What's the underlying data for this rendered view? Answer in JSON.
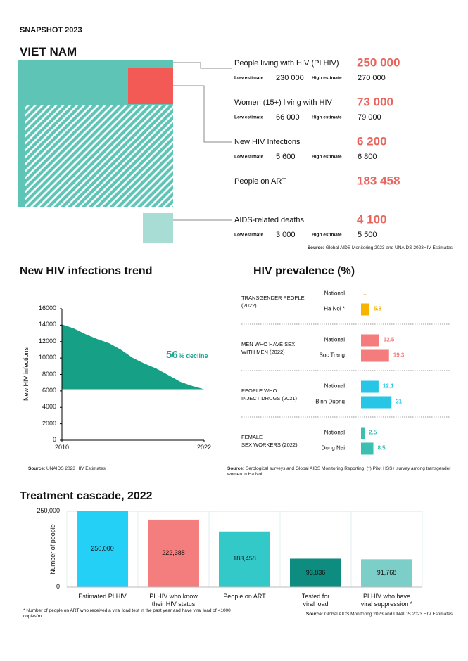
{
  "header": {
    "kicker": "SNAPSHOT 2023",
    "country": "VIET NAM"
  },
  "snapshot": {
    "low_label": "Low estimate",
    "high_label": "High estimate",
    "indicators": [
      {
        "label": "People living with HIV (PLHIV)",
        "value": "250 000",
        "low": "230 000",
        "high": "270 000"
      },
      {
        "label": "Women (15+) living with HIV",
        "value": "73 000",
        "low": "66 000",
        "high": "79 000"
      },
      {
        "label": "New HIV Infections",
        "value": "6 200",
        "low": "5 600",
        "high": "6 800"
      },
      {
        "label": "People on ART",
        "value": "183 458"
      },
      {
        "label": "AIDS-related deaths",
        "value": "4 100",
        "low": "3 000",
        "high": "5 500"
      }
    ],
    "source_label": "Source:",
    "source": "Global AIDS Monitoring 2023 and UNAIDS 2023HIV Estimates"
  },
  "chart_data": [
    {
      "type": "area",
      "title": "New HIV infections trend",
      "y_label": "New HIV infections",
      "x": [
        2010,
        2011,
        2012,
        2013,
        2014,
        2015,
        2016,
        2017,
        2018,
        2019,
        2020,
        2021,
        2022
      ],
      "values": [
        14100,
        13600,
        12900,
        12300,
        11800,
        11000,
        10000,
        9300,
        8700,
        7900,
        7100,
        6600,
        6200
      ],
      "color": "#16a086",
      "xlim": [
        2010,
        2022
      ],
      "xticks": [
        2010,
        2022
      ],
      "ylim": [
        0,
        16000
      ],
      "yticks": [
        0,
        2000,
        4000,
        6000,
        8000,
        10000,
        12000,
        14000,
        16000
      ],
      "annotation_value": "56",
      "annotation_text": "% decline",
      "source_label": "Source:",
      "source": "UNAIDS 2023 HIV Estimates"
    },
    {
      "type": "bar",
      "orientation": "horizontal",
      "title": "HIV prevalence (%)",
      "groups": [
        {
          "label": "TRANSGENDER PEOPLE\n(2022)",
          "color": "#f6b400",
          "categories": [
            "National",
            "Ha Noi  *"
          ],
          "values": [
            null,
            5.8
          ],
          "value_labels": [
            "...",
            "5.8"
          ]
        },
        {
          "label": "MEN WHO HAVE SEX\nWITH MEN (2022)",
          "color": "#f47c7c",
          "categories": [
            "National",
            "Soc Trang"
          ],
          "values": [
            12.5,
            19.3
          ]
        },
        {
          "label": "PEOPLE WHO\nINJECT DRUGS (2021)",
          "color": "#27c6e6",
          "categories": [
            "National",
            "Binh Duong"
          ],
          "values": [
            12.1,
            21
          ]
        },
        {
          "label": "FEMALE\nSEX WORKERS (2022)",
          "color": "#39c0b2",
          "categories": [
            "National",
            "Dong Nai"
          ],
          "values": [
            2.5,
            8.5
          ]
        }
      ],
      "source_label": "Source:",
      "source": "Serological surveys and Global AIDS Monitoring Reporting. (*) Pilot HSS+ survey among transgender women in Ha Noi"
    },
    {
      "type": "bar",
      "title": "Treatment cascade, 2022",
      "y_label": "Number of people",
      "categories": [
        "Estimated PLHIV",
        "PLHIV who know\ntheir HIV status",
        "People on ART",
        "Tested for\nviral load",
        "PLHIV who have\nviral suppression *"
      ],
      "values": [
        250000,
        222388,
        183458,
        93836,
        91768
      ],
      "value_labels": [
        "250,000",
        "222,388",
        "183,458",
        "93,836",
        "91,768"
      ],
      "colors": [
        "#25d0f7",
        "#f47d7d",
        "#33c9c9",
        "#0f8c80",
        "#7ccfc9"
      ],
      "ylim": [
        0,
        250000
      ],
      "yticks": [
        0,
        {
          "value": 250000,
          "label": "250,000"
        }
      ],
      "grid": true,
      "footnote": "* Number of people on ART who received a viral load test in the past year and have viral load of <1000 copies/ml",
      "source_label": "Source:",
      "source": "Global AIDS Monitoring 2023 and UNAIDS 2023 HIV Estimates"
    }
  ]
}
